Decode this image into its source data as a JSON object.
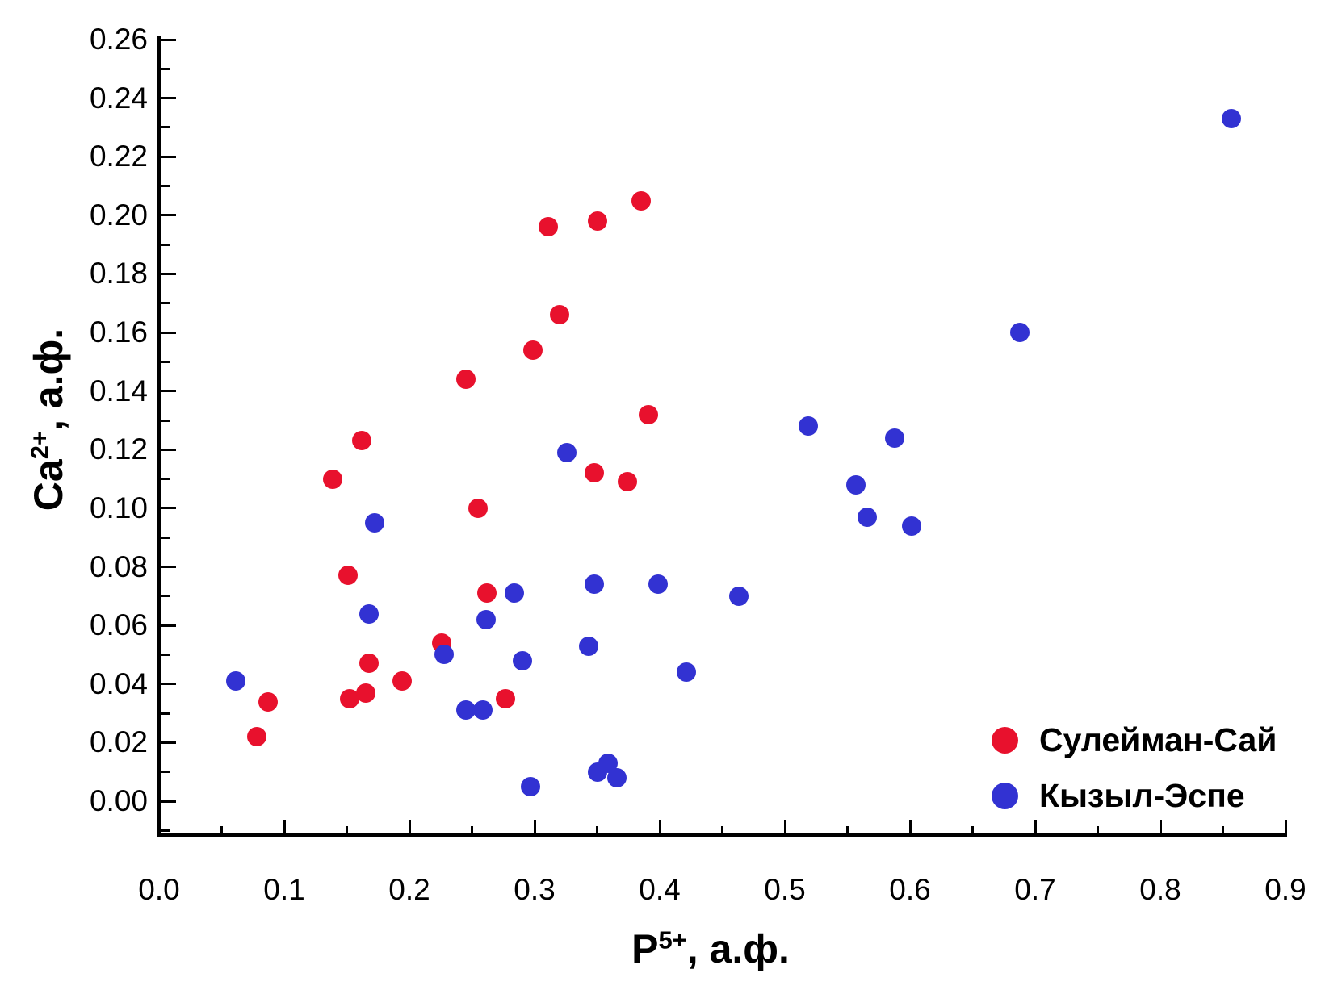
{
  "chart_data": {
    "type": "scatter",
    "title": "",
    "xlabel": {
      "base": "P",
      "sup": "5+",
      "suffix": ", а.ф."
    },
    "ylabel": {
      "base": "Ca",
      "sup": "2+",
      "suffix": ", а.ф."
    },
    "xlim": [
      0.0,
      0.9
    ],
    "ylim": [
      0.0,
      0.26
    ],
    "x_tick_labels": [
      "0.0",
      "0.1",
      "0.2",
      "0.3",
      "0.4",
      "0.5",
      "0.6",
      "0.7",
      "0.8",
      "0.9"
    ],
    "x_major_ticks": [
      0.0,
      0.1,
      0.2,
      0.3,
      0.4,
      0.5,
      0.6,
      0.7,
      0.8,
      0.9
    ],
    "x_minor_ticks": [
      0.05,
      0.15,
      0.25,
      0.35,
      0.45,
      0.55,
      0.65,
      0.75,
      0.85
    ],
    "y_tick_labels": [
      "0.00",
      "0.02",
      "0.04",
      "0.06",
      "0.08",
      "0.10",
      "0.12",
      "0.14",
      "0.16",
      "0.18",
      "0.20",
      "0.22",
      "0.24",
      "0.26"
    ],
    "y_major_ticks": [
      0.0,
      0.02,
      0.04,
      0.06,
      0.08,
      0.1,
      0.12,
      0.14,
      0.16,
      0.18,
      0.2,
      0.22,
      0.24,
      0.26
    ],
    "y_minor_ticks": [
      -0.01,
      0.01,
      0.03,
      0.05,
      0.07,
      0.09,
      0.11,
      0.13,
      0.15,
      0.17,
      0.19,
      0.21,
      0.23,
      0.25
    ],
    "grid": false,
    "legend_position": "bottom-right",
    "series": [
      {
        "name": "Сулейман-Сай",
        "color": "#e8112d",
        "points": [
          [
            0.078,
            0.022
          ],
          [
            0.087,
            0.034
          ],
          [
            0.139,
            0.11
          ],
          [
            0.151,
            0.077
          ],
          [
            0.152,
            0.035
          ],
          [
            0.162,
            0.123
          ],
          [
            0.165,
            0.037
          ],
          [
            0.168,
            0.047
          ],
          [
            0.194,
            0.041
          ],
          [
            0.226,
            0.054
          ],
          [
            0.245,
            0.144
          ],
          [
            0.255,
            0.1
          ],
          [
            0.262,
            0.071
          ],
          [
            0.277,
            0.035
          ],
          [
            0.299,
            0.154
          ],
          [
            0.311,
            0.196
          ],
          [
            0.32,
            0.166
          ],
          [
            0.348,
            0.112
          ],
          [
            0.35,
            0.198
          ],
          [
            0.374,
            0.109
          ],
          [
            0.385,
            0.205
          ],
          [
            0.391,
            0.132
          ]
        ]
      },
      {
        "name": "Кызыл-Эспе",
        "color": "#3232d2",
        "points": [
          [
            0.061,
            0.041
          ],
          [
            0.168,
            0.064
          ],
          [
            0.172,
            0.095
          ],
          [
            0.228,
            0.05
          ],
          [
            0.245,
            0.031
          ],
          [
            0.259,
            0.031
          ],
          [
            0.261,
            0.062
          ],
          [
            0.284,
            0.071
          ],
          [
            0.29,
            0.048
          ],
          [
            0.297,
            0.005
          ],
          [
            0.326,
            0.119
          ],
          [
            0.343,
            0.053
          ],
          [
            0.348,
            0.074
          ],
          [
            0.35,
            0.01
          ],
          [
            0.359,
            0.013
          ],
          [
            0.366,
            0.008
          ],
          [
            0.399,
            0.074
          ],
          [
            0.421,
            0.044
          ],
          [
            0.463,
            0.07
          ],
          [
            0.519,
            0.128
          ],
          [
            0.557,
            0.108
          ],
          [
            0.566,
            0.097
          ],
          [
            0.588,
            0.124
          ],
          [
            0.601,
            0.094
          ],
          [
            0.688,
            0.16
          ],
          [
            0.857,
            0.233
          ]
        ]
      }
    ]
  },
  "colors": {
    "axis": "#000000",
    "background": "#ffffff",
    "series_red": "#e8112d",
    "series_blue": "#3232d2"
  }
}
